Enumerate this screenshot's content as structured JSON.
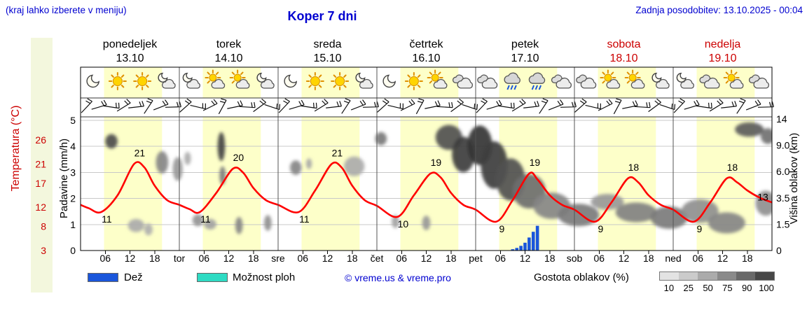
{
  "header": {
    "menu_hint": "(kraj lahko izberete v meniju)",
    "title": "Koper 7 dni",
    "last_update": "Zadnja posodobitev: 13.10.2025 - 00:04"
  },
  "axes": {
    "temperature_label": "Temperatura (°C)",
    "temperature_ticks": [
      26,
      21,
      17,
      12,
      8,
      3
    ],
    "precip_label": "Padavine (mm/h)",
    "precip_ticks": [
      5,
      4,
      3,
      2,
      1,
      0
    ],
    "cloud_label": "Višina oblakov (km)",
    "cloud_ticks": [
      "14",
      "9.0",
      "6.0",
      "3.5",
      "1.5",
      "0"
    ]
  },
  "x_axis": {
    "hour_labels": [
      "06",
      "12",
      "18"
    ],
    "boundary_labels": [
      "tor",
      "sre",
      "čet",
      "pet",
      "sob",
      "ned"
    ]
  },
  "days": [
    {
      "name": "ponedeljek",
      "date": "13.10",
      "color": "#000000",
      "high": 21,
      "low": 11,
      "icons": [
        "moon",
        "sun",
        "sun",
        "moon-cloud"
      ]
    },
    {
      "name": "torek",
      "date": "14.10",
      "color": "#000000",
      "high": 20,
      "low": 11,
      "icons": [
        "moon-cloud",
        "sun-cloud",
        "sun-cloud",
        "moon-cloud"
      ]
    },
    {
      "name": "sreda",
      "date": "15.10",
      "color": "#000000",
      "high": 21,
      "low": 11,
      "icons": [
        "moon",
        "sun",
        "sun",
        "moon-cloud"
      ]
    },
    {
      "name": "četrtek",
      "date": "16.10",
      "color": "#000000",
      "high": 19,
      "low": 10,
      "icons": [
        "moon",
        "sun",
        "sun-cloud",
        "cloud"
      ]
    },
    {
      "name": "petek",
      "date": "17.10",
      "color": "#000000",
      "high": 19,
      "low": 9,
      "icons": [
        "cloud",
        "rain",
        "rain",
        "cloud"
      ]
    },
    {
      "name": "sobota",
      "date": "18.10",
      "color": "#cc0000",
      "high": 18,
      "low": 9,
      "icons": [
        "cloud",
        "sun-cloud",
        "sun-cloud",
        "moon-cloud"
      ]
    },
    {
      "name": "nedelja",
      "date": "19.10",
      "color": "#cc0000",
      "high": 18,
      "low": 9,
      "icons": [
        "moon-cloud",
        "cloud",
        "sun-cloud",
        "cloud"
      ]
    }
  ],
  "chart_data": {
    "type": "meteogram",
    "temperature_c": {
      "points": [
        [
          0,
          12.5
        ],
        [
          2,
          11.8
        ],
        [
          5,
          11
        ],
        [
          9,
          14.5
        ],
        [
          13,
          21
        ],
        [
          15.5,
          20.3
        ],
        [
          18,
          16.5
        ],
        [
          21,
          13.5
        ],
        [
          24,
          12.5
        ],
        [
          26.5,
          11.6
        ],
        [
          29,
          11
        ],
        [
          33,
          15
        ],
        [
          37,
          20
        ],
        [
          39.5,
          19.2
        ],
        [
          42,
          16
        ],
        [
          45,
          13.5
        ],
        [
          48,
          12.5
        ],
        [
          53,
          11
        ],
        [
          57,
          15.5
        ],
        [
          61,
          21
        ],
        [
          63.5,
          20.2
        ],
        [
          66,
          16.5
        ],
        [
          69,
          13.5
        ],
        [
          72,
          12.3
        ],
        [
          77,
          10
        ],
        [
          81,
          14.5
        ],
        [
          85,
          19
        ],
        [
          87.5,
          18.2
        ],
        [
          90,
          15
        ],
        [
          93,
          12.5
        ],
        [
          96,
          11.5
        ],
        [
          101,
          9
        ],
        [
          105,
          13.5
        ],
        [
          109,
          19
        ],
        [
          111,
          17.8
        ],
        [
          114,
          14.5
        ],
        [
          117,
          12.5
        ],
        [
          120,
          11.5
        ],
        [
          125,
          9
        ],
        [
          129,
          13
        ],
        [
          133,
          18
        ],
        [
          135.5,
          17.2
        ],
        [
          138,
          14.5
        ],
        [
          141,
          12.5
        ],
        [
          144,
          11.5
        ],
        [
          149,
          9
        ],
        [
          153,
          13
        ],
        [
          157,
          18
        ],
        [
          159.5,
          17.2
        ],
        [
          162,
          15.5
        ],
        [
          165,
          14
        ],
        [
          168,
          13
        ]
      ],
      "daily_highs": [
        21,
        20,
        21,
        19,
        19,
        18,
        18
      ],
      "daily_lows": [
        11,
        11,
        11,
        10,
        9,
        9,
        9
      ],
      "end_label": 13
    },
    "precipitation_mm_h": [
      [
        105,
        0.05
      ],
      [
        106,
        0.1
      ],
      [
        107,
        0.18
      ],
      [
        108,
        0.3
      ],
      [
        109,
        0.5
      ],
      [
        110,
        0.72
      ],
      [
        111,
        0.95
      ]
    ],
    "cloud_layers": [
      [
        7.5,
        4.15,
        3,
        0.55,
        0.8
      ],
      [
        13.5,
        0.95,
        4,
        0.5,
        0.3
      ],
      [
        16.5,
        0.8,
        2,
        0.45,
        0.28
      ],
      [
        19.8,
        3.35,
        3,
        0.85,
        0.5
      ],
      [
        23.6,
        3.1,
        2.4,
        0.9,
        0.4
      ],
      [
        26,
        3.5,
        1.6,
        0.5,
        0.3
      ],
      [
        28.5,
        1.15,
        2.6,
        0.45,
        0.42
      ],
      [
        31.5,
        1.0,
        3,
        0.4,
        0.35
      ],
      [
        34.2,
        3.95,
        1.8,
        1.1,
        0.85
      ],
      [
        34.5,
        2.85,
        1.5,
        0.7,
        0.55
      ],
      [
        38.5,
        0.95,
        1.8,
        0.65,
        0.5
      ],
      [
        45.5,
        1.05,
        1.8,
        0.6,
        0.45
      ],
      [
        52.3,
        3.15,
        2.8,
        0.55,
        0.5
      ],
      [
        55.5,
        3.3,
        1.4,
        0.4,
        0.32
      ],
      [
        66.5,
        3.2,
        5,
        0.75,
        0.3
      ],
      [
        73,
        4.25,
        2.8,
        0.5,
        0.55
      ],
      [
        76.5,
        1.1,
        1.8,
        0.5,
        0.35
      ],
      [
        84,
        1.05,
        2,
        0.55,
        0.4
      ],
      [
        89.5,
        4.3,
        6.5,
        0.95,
        0.78
      ],
      [
        93,
        3.65,
        5.5,
        1.35,
        0.88
      ],
      [
        97,
        4.0,
        6,
        1.5,
        0.92
      ],
      [
        100.5,
        3.25,
        6.5,
        1.8,
        0.88
      ],
      [
        104.5,
        2.7,
        7,
        1.6,
        0.78
      ],
      [
        109,
        2.25,
        8,
        1.3,
        0.62
      ],
      [
        114.5,
        1.7,
        9,
        1.0,
        0.5
      ],
      [
        121,
        1.35,
        10,
        0.85,
        0.55
      ],
      [
        128,
        1.85,
        8,
        0.6,
        0.4
      ],
      [
        135,
        1.45,
        10,
        0.75,
        0.52
      ],
      [
        143,
        1.25,
        9,
        0.85,
        0.55
      ],
      [
        150.5,
        1.5,
        9,
        0.9,
        0.45
      ],
      [
        157,
        1.05,
        9,
        0.8,
        0.5
      ],
      [
        162.5,
        4.6,
        7,
        0.55,
        0.72
      ],
      [
        166.5,
        1.8,
        5,
        0.95,
        0.45
      ],
      [
        167,
        4.35,
        3.5,
        0.6,
        0.6
      ]
    ],
    "cloud_level_scale_km": [
      0,
      1.5,
      3.5,
      6,
      9,
      14
    ],
    "daylight_hours": [
      5.7,
      19.8
    ],
    "wind_barb_angles": [
      -20,
      10,
      35,
      -5,
      20,
      -30,
      5,
      25,
      -15,
      40,
      0,
      -35,
      15,
      30,
      -10,
      45
    ]
  },
  "legend": {
    "rain_label": "Dež",
    "showers_label": "Možnost ploh",
    "copyright": "© vreme.us & vreme.pro",
    "cloud_density_label": "Gostota oblakov (%)",
    "density_ticks": [
      "10",
      "25",
      "50",
      "75",
      "90",
      "100"
    ],
    "density_colors": [
      "#e3e3e3",
      "#cbcbcb",
      "#ababab",
      "#8a8a8a",
      "#696969",
      "#474747"
    ]
  },
  "colors": {
    "header_blue": "#0000d0",
    "temp_curve_red": "#ff0000",
    "axis_red": "#cc0000",
    "rain_blue": "#1a56db",
    "showers_cyan": "#2edbc3",
    "day_band": "#fdffc9",
    "accent_strip": "#f3f7dd"
  }
}
